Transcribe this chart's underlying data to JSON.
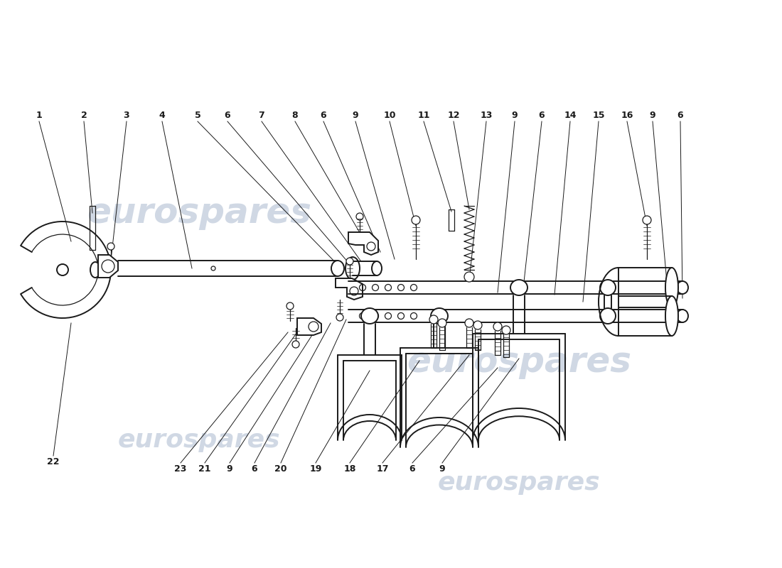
{
  "background_color": "#ffffff",
  "line_color": "#1a1a1a",
  "watermark_color": "#c8d2e0",
  "lw_main": 1.4,
  "lw_thin": 0.9,
  "lw_leader": 0.7,
  "fig_w": 11.0,
  "fig_h": 8.0,
  "top_labels": [
    [
      "1",
      55,
      145
    ],
    [
      "2",
      118,
      145
    ],
    [
      "3",
      178,
      145
    ],
    [
      "4",
      228,
      145
    ],
    [
      "5",
      278,
      145
    ],
    [
      "6",
      320,
      145
    ],
    [
      "7",
      368,
      145
    ],
    [
      "8",
      415,
      145
    ],
    [
      "6",
      455,
      145
    ],
    [
      "9",
      500,
      145
    ],
    [
      "10",
      548,
      145
    ],
    [
      "11",
      596,
      145
    ],
    [
      "12",
      638,
      145
    ],
    [
      "13",
      684,
      145
    ],
    [
      "9",
      724,
      145
    ],
    [
      "6",
      762,
      145
    ],
    [
      "14",
      802,
      145
    ],
    [
      "15",
      842,
      145
    ],
    [
      "16",
      882,
      145
    ],
    [
      "9",
      918,
      145
    ],
    [
      "6",
      957,
      145
    ]
  ],
  "bottom_labels": [
    [
      "22",
      75,
      615
    ],
    [
      "23",
      254,
      668
    ],
    [
      "21",
      288,
      668
    ],
    [
      "9",
      323,
      668
    ],
    [
      "6",
      358,
      668
    ],
    [
      "20",
      395,
      668
    ],
    [
      "19",
      444,
      668
    ],
    [
      "18",
      492,
      668
    ],
    [
      "17",
      538,
      668
    ],
    [
      "6",
      580,
      668
    ],
    [
      "9",
      622,
      668
    ]
  ]
}
